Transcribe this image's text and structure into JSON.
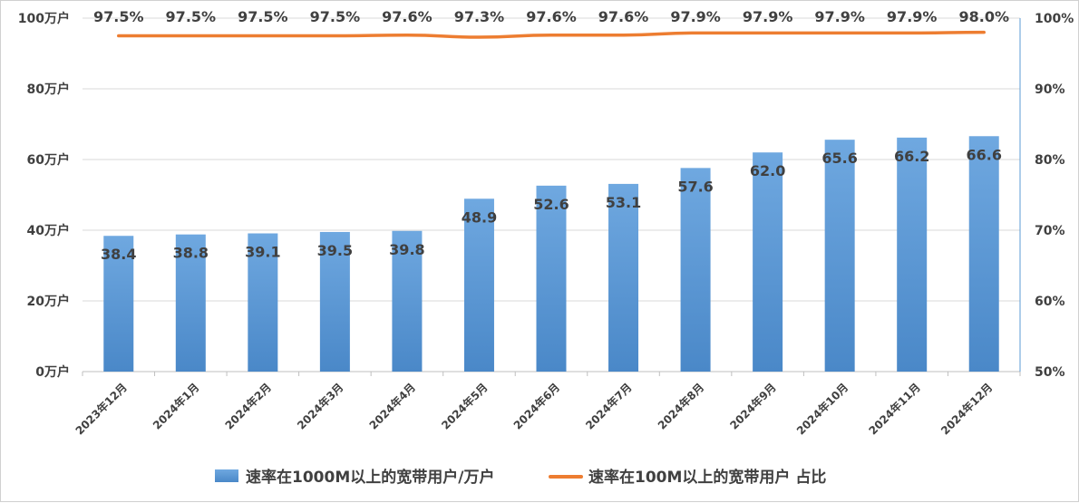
{
  "chart_data": {
    "type": "bar+line",
    "categories": [
      "2023年12月",
      "2024年1月",
      "2024年2月",
      "2024年3月",
      "2024年4月",
      "2024年5月",
      "2024年6月",
      "2024年7月",
      "2024年8月",
      "2024年9月",
      "2024年10月",
      "2024年11月",
      "2024年12月"
    ],
    "series": [
      {
        "name": "速率在1000M以上的宽带用户/万户",
        "type": "bar",
        "axis": "left",
        "values": [
          38.4,
          38.8,
          39.1,
          39.5,
          39.8,
          48.9,
          52.6,
          53.1,
          57.6,
          62.0,
          65.6,
          66.2,
          66.6
        ],
        "labels": [
          "38.4",
          "38.8",
          "39.1",
          "39.5",
          "39.8",
          "48.9",
          "52.6",
          "53.1",
          "57.6",
          "62.0",
          "65.6",
          "66.2",
          "66.6"
        ],
        "color": "#5b9bd5"
      },
      {
        "name": "速率在100M以上的宽带用户 占比",
        "type": "line",
        "axis": "right",
        "values": [
          97.5,
          97.5,
          97.5,
          97.5,
          97.6,
          97.3,
          97.6,
          97.6,
          97.9,
          97.9,
          97.9,
          97.9,
          98.0
        ],
        "labels": [
          "97.5%",
          "97.5%",
          "97.5%",
          "97.5%",
          "97.6%",
          "97.3%",
          "97.6%",
          "97.6%",
          "97.9%",
          "97.9%",
          "97.9%",
          "97.9%",
          "98.0%"
        ],
        "color": "#ed7d31"
      }
    ],
    "y_left": {
      "min": 0,
      "max": 100,
      "ticks": [
        0,
        20,
        40,
        60,
        80,
        100
      ],
      "tick_labels": [
        "0万户",
        "20万户",
        "40万户",
        "60万户",
        "80万户",
        "100万户"
      ]
    },
    "y_right": {
      "min": 50,
      "max": 100,
      "ticks": [
        50,
        60,
        70,
        80,
        90,
        100
      ],
      "tick_labels": [
        "50%",
        "60%",
        "70%",
        "80%",
        "90%",
        "100%"
      ]
    },
    "grid": true,
    "legend_position": "bottom",
    "title": "",
    "xlabel": "",
    "ylabel": ""
  }
}
